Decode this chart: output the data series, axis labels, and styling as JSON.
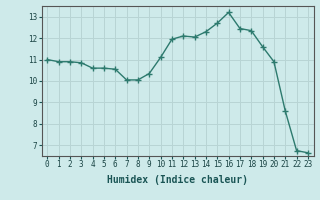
{
  "x": [
    0,
    1,
    2,
    3,
    4,
    5,
    6,
    7,
    8,
    9,
    10,
    11,
    12,
    13,
    14,
    15,
    16,
    17,
    18,
    19,
    20,
    21,
    22,
    23
  ],
  "y": [
    11.0,
    10.9,
    10.9,
    10.85,
    10.6,
    10.6,
    10.55,
    10.05,
    10.05,
    10.35,
    11.1,
    11.95,
    12.1,
    12.05,
    12.3,
    12.7,
    13.2,
    12.45,
    12.35,
    11.6,
    10.9,
    8.6,
    6.75,
    6.65
  ],
  "line_color": "#2d7a6e",
  "marker": "+",
  "marker_size": 4,
  "bg_color": "#ceeaea",
  "grid_color": "#b8d4d4",
  "xlabel": "Humidex (Indice chaleur)",
  "ylim": [
    6.5,
    13.5
  ],
  "xlim": [
    -0.5,
    23.5
  ],
  "yticks": [
    7,
    8,
    9,
    10,
    11,
    12,
    13
  ],
  "xticks": [
    0,
    1,
    2,
    3,
    4,
    5,
    6,
    7,
    8,
    9,
    10,
    11,
    12,
    13,
    14,
    15,
    16,
    17,
    18,
    19,
    20,
    21,
    22,
    23
  ],
  "tick_fontsize": 5.5,
  "xlabel_fontsize": 7,
  "linewidth": 1.0,
  "spine_color": "#555555"
}
